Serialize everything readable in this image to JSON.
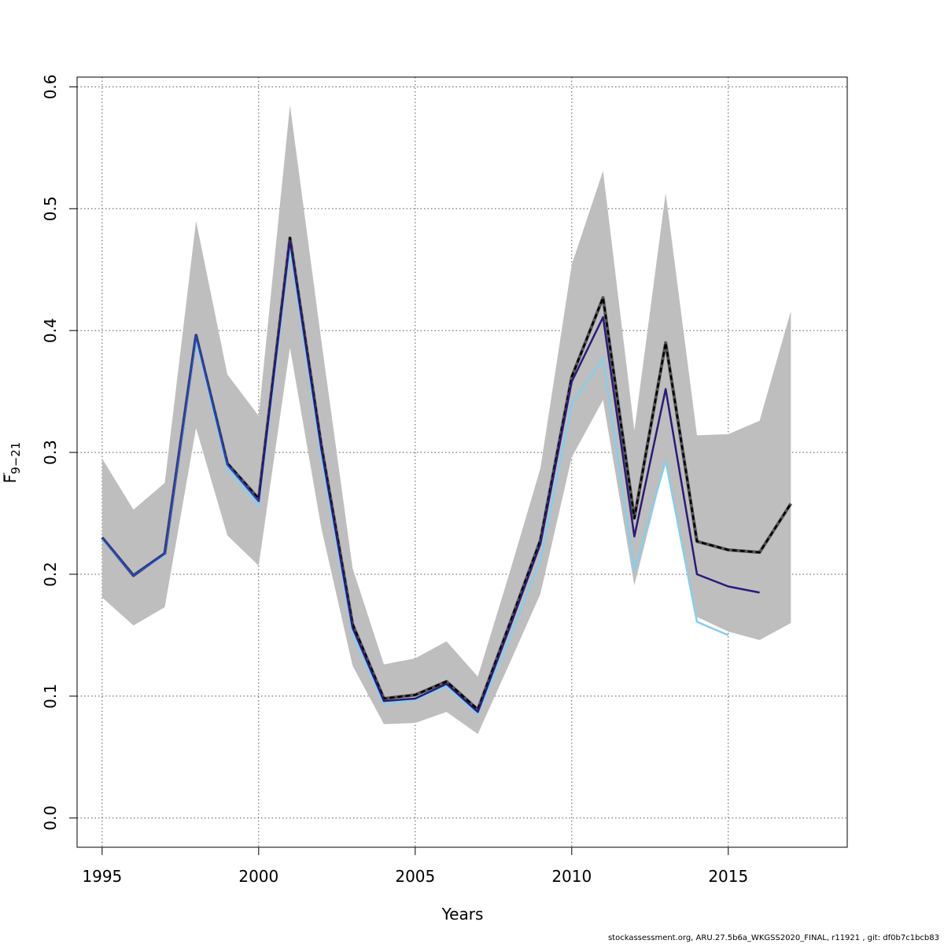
{
  "chart_data": {
    "type": "line",
    "xlabel": "Years",
    "ylabel_main": "F",
    "ylabel_sub": "9−21",
    "xlim": [
      1994.2,
      2018.8
    ],
    "ylim": [
      -0.024,
      0.608
    ],
    "xticks": [
      1995,
      2000,
      2005,
      2010,
      2015
    ],
    "yticks": [
      0.0,
      0.1,
      0.2,
      0.3,
      0.4,
      0.5,
      0.6
    ],
    "ytick_labels": [
      "0.0",
      "0.1",
      "0.2",
      "0.3",
      "0.4",
      "0.5",
      "0.6"
    ],
    "grid": true,
    "band": {
      "name": "confidence interval",
      "color": "#bebebe",
      "x": [
        1995,
        1996,
        1997,
        1998,
        1999,
        2000,
        2001,
        2002,
        2003,
        2004,
        2005,
        2006,
        2007,
        2008,
        2009,
        2010,
        2011,
        2012,
        2013,
        2014,
        2015,
        2016,
        2017
      ],
      "lower": [
        0.181,
        0.158,
        0.173,
        0.32,
        0.232,
        0.207,
        0.386,
        0.238,
        0.125,
        0.077,
        0.078,
        0.087,
        0.069,
        0.126,
        0.184,
        0.296,
        0.343,
        0.191,
        0.293,
        0.165,
        0.153,
        0.146,
        0.16
      ],
      "upper": [
        0.295,
        0.253,
        0.275,
        0.49,
        0.364,
        0.33,
        0.585,
        0.392,
        0.205,
        0.126,
        0.131,
        0.145,
        0.116,
        0.2,
        0.287,
        0.454,
        0.531,
        0.318,
        0.513,
        0.314,
        0.315,
        0.326,
        0.416
      ]
    },
    "series": [
      {
        "color": "#000000",
        "dashed": true,
        "width": 2.5,
        "x": [
          1995,
          1996,
          1997,
          1998,
          1999,
          2000,
          2001,
          2002,
          2003,
          2004,
          2005,
          2006,
          2007,
          2008,
          2009,
          2010,
          2011,
          2012,
          2013,
          2014,
          2015,
          2016,
          2017
        ],
        "values": [
          0.23,
          0.199,
          0.217,
          0.396,
          0.291,
          0.262,
          0.476,
          0.306,
          0.159,
          0.098,
          0.101,
          0.112,
          0.089,
          0.158,
          0.228,
          0.362,
          0.427,
          0.246,
          0.39,
          0.227,
          0.22,
          0.218,
          0.258
        ]
      },
      {
        "color": "#87ceeb",
        "dashed": false,
        "width": 2.5,
        "x": [
          1995,
          1996,
          1997,
          1998,
          1999,
          2000,
          2001,
          2002,
          2003,
          2004,
          2005,
          2006,
          2007,
          2008,
          2009,
          2010,
          2011,
          2012,
          2013,
          2014,
          2015
        ],
        "values": [
          0.229,
          0.199,
          0.216,
          0.393,
          0.287,
          0.256,
          0.467,
          0.296,
          0.151,
          0.093,
          0.097,
          0.108,
          0.085,
          0.147,
          0.212,
          0.34,
          0.377,
          0.203,
          0.293,
          0.161,
          0.15
        ]
      },
      {
        "color": "#2a1a7a",
        "dashed": false,
        "width": 2.5,
        "x": [
          1995,
          1996,
          1997,
          1998,
          1999,
          2000,
          2001,
          2002,
          2003,
          2004,
          2005,
          2006,
          2007,
          2008,
          2009,
          2010,
          2011,
          2012,
          2013,
          2014,
          2015,
          2016
        ],
        "values": [
          0.23,
          0.199,
          0.217,
          0.396,
          0.29,
          0.26,
          0.474,
          0.303,
          0.156,
          0.096,
          0.098,
          0.11,
          0.087,
          0.155,
          0.225,
          0.358,
          0.411,
          0.231,
          0.352,
          0.2,
          0.19,
          0.185
        ]
      },
      {
        "color": "#1f4fd0",
        "dashed": false,
        "width": 1.5,
        "x": [
          1995,
          1996,
          1997,
          1998,
          1999,
          2000
        ],
        "values": [
          0.23,
          0.199,
          0.217,
          0.396,
          0.29,
          0.26
        ]
      }
    ]
  },
  "footer": {
    "text": "stockassessment.org, ARU.27.5b6a_WKGSS2020_FINAL, r11921 , git: df0b7c1bcb83"
  }
}
